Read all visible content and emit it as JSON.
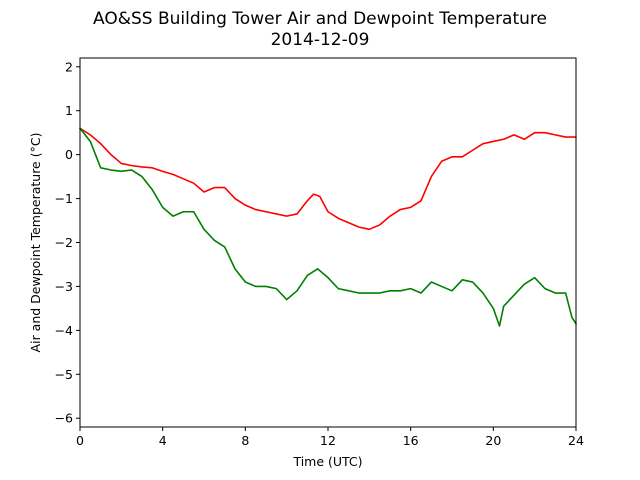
{
  "chart_data": {
    "type": "line",
    "title": "AO&SS Building Tower Air and Dewpoint Temperature",
    "subtitle": "2014-12-09",
    "xlabel": "Time (UTC)",
    "ylabel": "Air and Dewpoint Temperature (°C)",
    "xlim": [
      0,
      24
    ],
    "ylim": [
      -6.2,
      2.2
    ],
    "xticks": [
      0,
      4,
      8,
      12,
      16,
      20,
      24
    ],
    "xtick_labels": [
      "0",
      "4",
      "8",
      "12",
      "16",
      "20",
      "24"
    ],
    "yticks": [
      -6,
      -5,
      -4,
      -3,
      -2,
      -1,
      0,
      1,
      2
    ],
    "ytick_labels": [
      "−6",
      "−5",
      "−4",
      "−3",
      "−2",
      "−1",
      "0",
      "1",
      "2"
    ],
    "grid": false,
    "series": [
      {
        "color": "#ff0000",
        "x": [
          0,
          0.5,
          1,
          1.5,
          2,
          2.5,
          3,
          3.5,
          4,
          4.5,
          5,
          5.5,
          6,
          6.5,
          7,
          7.5,
          8,
          8.5,
          9,
          9.5,
          10,
          10.5,
          11,
          11.3,
          11.6,
          12,
          12.5,
          13,
          13.5,
          14,
          14.5,
          15,
          15.5,
          16,
          16.5,
          17,
          17.5,
          18,
          18.5,
          19,
          19.5,
          20,
          20.5,
          21,
          21.5,
          22,
          22.5,
          23,
          23.5,
          24
        ],
        "y": [
          0.6,
          0.45,
          0.25,
          0.0,
          -0.2,
          -0.25,
          -0.28,
          -0.3,
          -0.38,
          -0.45,
          -0.55,
          -0.65,
          -0.85,
          -0.75,
          -0.75,
          -1.0,
          -1.15,
          -1.25,
          -1.3,
          -1.35,
          -1.4,
          -1.35,
          -1.05,
          -0.9,
          -0.95,
          -1.3,
          -1.45,
          -1.55,
          -1.65,
          -1.7,
          -1.6,
          -1.4,
          -1.25,
          -1.2,
          -1.05,
          -0.5,
          -0.15,
          -0.05,
          -0.05,
          0.1,
          0.25,
          0.3,
          0.35,
          0.45,
          0.35,
          0.5,
          0.5,
          0.45,
          0.4,
          0.4
        ]
      },
      {
        "color": "#008000",
        "x": [
          0,
          0.5,
          1,
          1.5,
          2,
          2.5,
          3,
          3.5,
          4,
          4.5,
          5,
          5.5,
          6,
          6.5,
          7,
          7.5,
          8,
          8.5,
          9,
          9.5,
          10,
          10.5,
          11,
          11.5,
          12,
          12.5,
          13,
          13.5,
          14,
          14.5,
          15,
          15.5,
          16,
          16.5,
          17,
          17.5,
          18,
          18.5,
          19,
          19.5,
          20,
          20.3,
          20.5,
          21,
          21.5,
          22,
          22.5,
          23,
          23.5,
          23.8,
          24
        ],
        "y": [
          0.6,
          0.3,
          -0.3,
          -0.35,
          -0.38,
          -0.35,
          -0.5,
          -0.8,
          -1.2,
          -1.4,
          -1.3,
          -1.3,
          -1.7,
          -1.95,
          -2.1,
          -2.6,
          -2.9,
          -3.0,
          -3.0,
          -3.05,
          -3.3,
          -3.1,
          -2.75,
          -2.6,
          -2.8,
          -3.05,
          -3.1,
          -3.15,
          -3.15,
          -3.15,
          -3.1,
          -3.1,
          -3.05,
          -3.15,
          -2.9,
          -3.0,
          -3.1,
          -2.85,
          -2.9,
          -3.15,
          -3.5,
          -3.9,
          -3.45,
          -3.2,
          -2.95,
          -2.8,
          -3.05,
          -3.15,
          -3.15,
          -3.7,
          -3.85
        ]
      }
    ]
  }
}
